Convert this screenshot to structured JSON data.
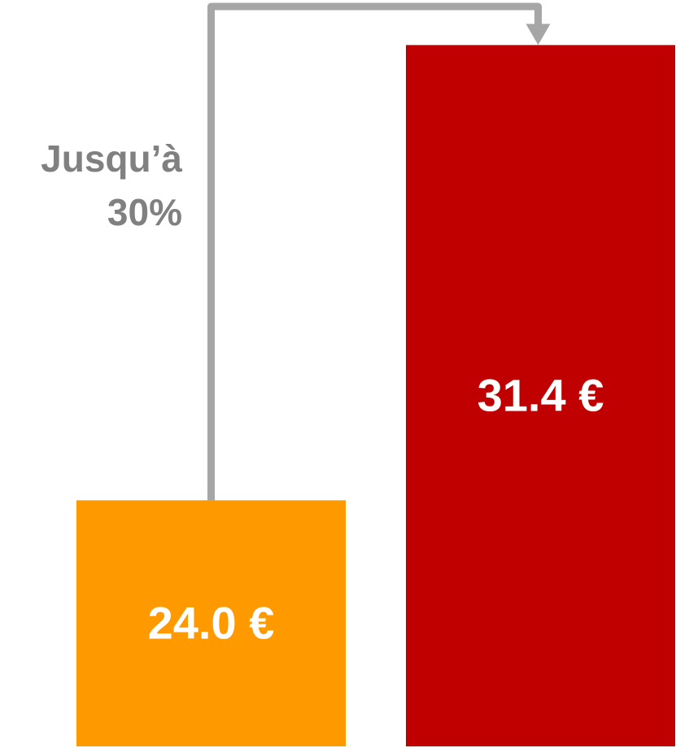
{
  "chart_data": {
    "type": "bar",
    "annotation": "Jusqu’à 30%",
    "categories": [
      null,
      null
    ],
    "values": [
      24.0,
      31.4
    ],
    "value_labels": [
      "24.0 €",
      "31.4 €"
    ],
    "colors": [
      "#ff9900",
      "#c00000"
    ],
    "arrow_color": "#a6a6a6",
    "ylim": [
      20,
      32
    ]
  }
}
